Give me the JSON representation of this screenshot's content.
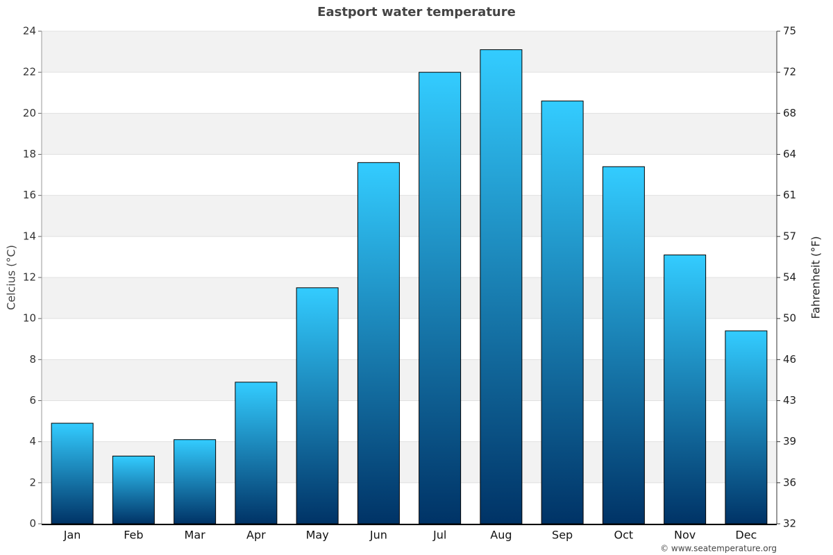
{
  "chart_data": {
    "type": "bar",
    "title": "Eastport water temperature",
    "ylabel": "Celcius (°C)",
    "y2label": "Fahrenheit (°F)",
    "categories": [
      "Jan",
      "Feb",
      "Mar",
      "Apr",
      "May",
      "Jun",
      "Jul",
      "Aug",
      "Sep",
      "Oct",
      "Nov",
      "Dec"
    ],
    "values": [
      4.9,
      3.3,
      4.1,
      6.9,
      11.5,
      17.6,
      22.0,
      23.1,
      20.6,
      17.4,
      13.1,
      9.4
    ],
    "color_top": "#33ccff",
    "color_bottom": "#003366",
    "ylim": [
      0,
      24
    ],
    "yticks": [
      0,
      2,
      4,
      6,
      8,
      10,
      12,
      14,
      16,
      18,
      20,
      22,
      24
    ],
    "y2lim": [
      32,
      75.2
    ],
    "y2ticks": [
      32,
      {
        "value": 35.6,
        "label": "36"
      },
      {
        "value": 39.2,
        "label": "39"
      },
      {
        "value": 42.8,
        "label": "43"
      },
      {
        "value": 46.4,
        "label": "46"
      },
      50,
      {
        "value": 53.6,
        "label": "54"
      },
      {
        "value": 57.2,
        "label": "57"
      },
      {
        "value": 60.8,
        "label": "61"
      },
      {
        "value": 64.4,
        "label": "64"
      },
      68,
      {
        "value": 71.6,
        "label": "72"
      },
      {
        "value": 75.2,
        "label": "75"
      }
    ],
    "grid": true,
    "credit": "© www.seatemperature.org"
  }
}
